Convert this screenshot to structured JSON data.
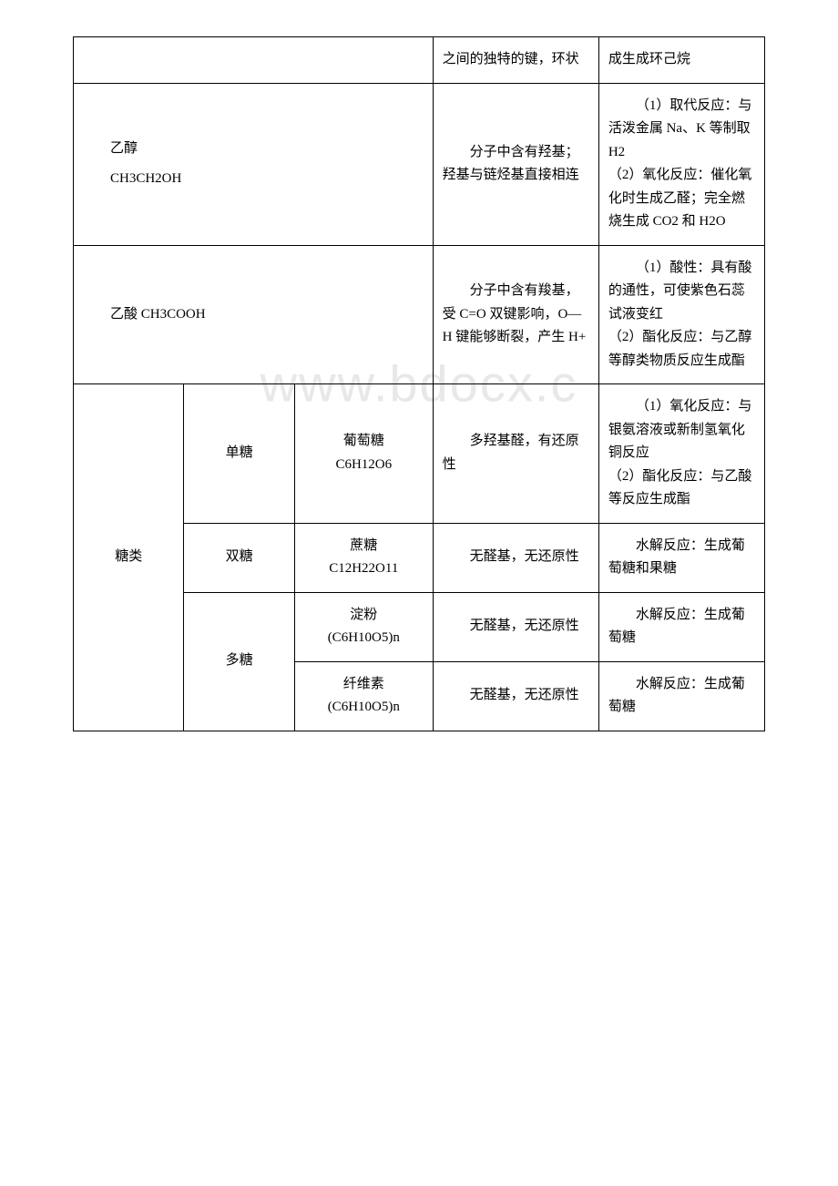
{
  "watermark": "www.bdocx.c",
  "table": {
    "border_color": "#000000",
    "background_color": "#ffffff",
    "font_size": 15,
    "line_height": 1.7,
    "column_widths": [
      "16%",
      "16%",
      "20%",
      "24%",
      "24%"
    ],
    "watermark_color": "#e8e8e8",
    "watermark_fontsize": 56
  },
  "rows": {
    "r0": {
      "c3": "之间的独特的键，环状",
      "c4": "成生成环己烷"
    },
    "r1": {
      "c0a": "乙醇",
      "c0b": "CH3CH2OH",
      "c3": "分子中含有羟基；羟基与链烃基直接相连",
      "c4": "（1）取代反应：与活泼金属 Na、K 等制取 H2\n（2）氧化反应：催化氧化时生成乙醛；完全燃烧生成 CO2 和 H2O"
    },
    "r2": {
      "c0": "乙酸 CH3COOH",
      "c3": "分子中含有羧基，受 C=O 双键影响，O—H 键能够断裂，产生 H+",
      "c4": "（1）酸性：具有酸的通性，可使紫色石蕊试液变红\n（2）酯化反应：与乙醇等醇类物质反应生成酯"
    },
    "r3": {
      "c0": "糖类",
      "c1": "单糖",
      "c2a": "葡萄糖",
      "c2b": "C6H12O6",
      "c3": "多羟基醛，有还原性",
      "c4": "（1）氧化反应：与银氨溶液或新制氢氧化铜反应\n（2）酯化反应：与乙酸等反应生成酯"
    },
    "r4": {
      "c1": "双糖",
      "c2a": "蔗糖",
      "c2b": "C12H22O11",
      "c3": "无醛基，无还原性",
      "c4": "水解反应：生成葡萄糖和果糖"
    },
    "r5": {
      "c1": "多糖",
      "c2a": "淀粉",
      "c2b": "(C6H10O5)n",
      "c3": "无醛基，无还原性",
      "c4": "水解反应：生成葡萄糖"
    },
    "r6": {
      "c2a": "纤维素",
      "c2b": "(C6H10O5)n",
      "c3": "无醛基，无还原性",
      "c4": "水解反应：生成葡萄糖"
    }
  }
}
